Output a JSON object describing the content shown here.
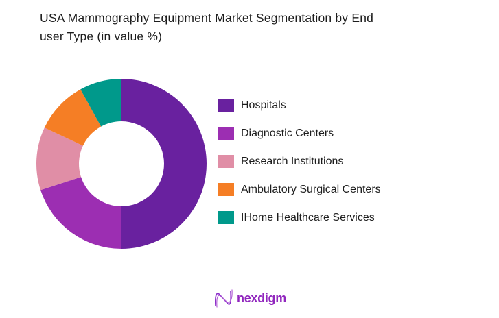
{
  "page": {
    "background": "#ffffff"
  },
  "header": {
    "title_full": "USA Mammography Equipment Market Segmentation by End user Type (in value %)",
    "title_lines": [
      "USA Mammography Equipment Market Segmentation by End",
      "user Type (in value %)"
    ]
  },
  "chart_data": {
    "type": "pie",
    "subtype": "donut",
    "title": "USA Mammography Equipment Market Segmentation by End user Type (in value %)",
    "categories": [
      "Hospitals",
      "Diagnostic Centers",
      "Research Institutions",
      "Ambulatory Surgical Centers",
      "IHome Healthcare Services"
    ],
    "values": [
      50,
      20,
      12,
      10,
      8
    ],
    "colors": [
      "#69219F",
      "#9C2EB2",
      "#E08EA6",
      "#F57E25",
      "#00998B"
    ],
    "start_angle_deg": 0,
    "direction": "clockwise",
    "inner_radius_ratio": 0.5,
    "legend_position": "right",
    "data_labels": "none"
  },
  "footer": {
    "logo_text": "nexdigm",
    "logo_mark": "n-wave-icon",
    "logo_color": "#9126BE"
  }
}
